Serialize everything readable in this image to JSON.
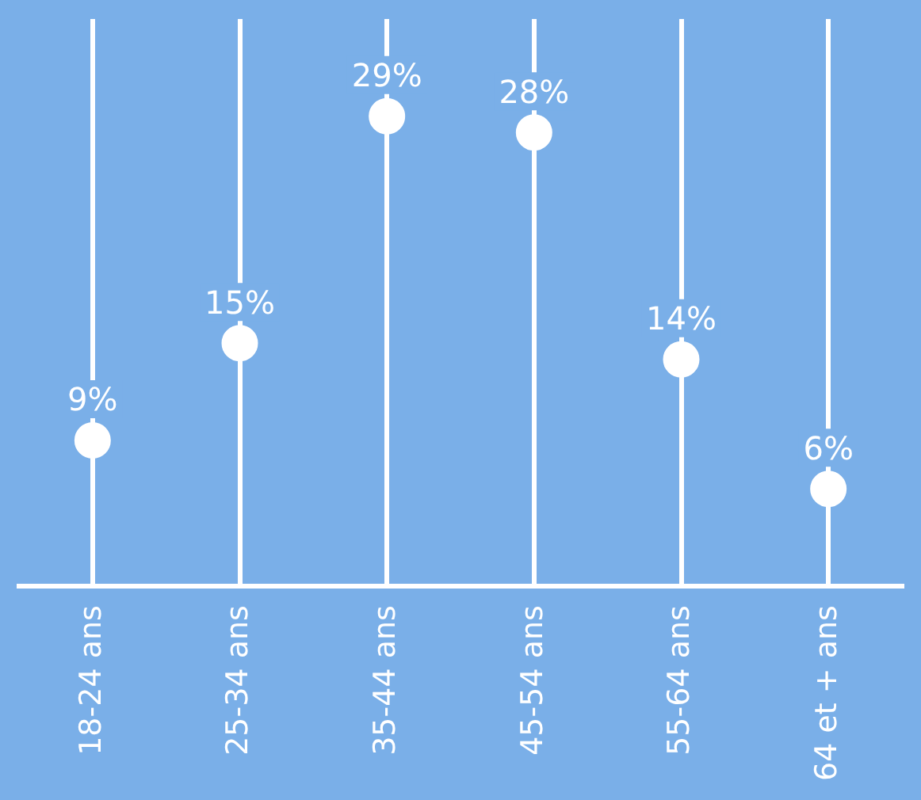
{
  "chart_data": {
    "type": "scatter",
    "categories": [
      "18-24 ans",
      "25-34 ans",
      "35-44 ans",
      "45-54 ans",
      "55-64 ans",
      "64 et + ans"
    ],
    "series": [
      {
        "color": "#ffffff",
        "values": [
          9,
          15,
          29,
          28,
          14,
          6
        ],
        "value_labels": [
          "9%",
          "15%",
          "29%",
          "28%",
          "14%",
          "6%"
        ]
      }
    ],
    "grid": "x",
    "marker": "circle",
    "legend": false,
    "tick_labels": "x"
  }
}
